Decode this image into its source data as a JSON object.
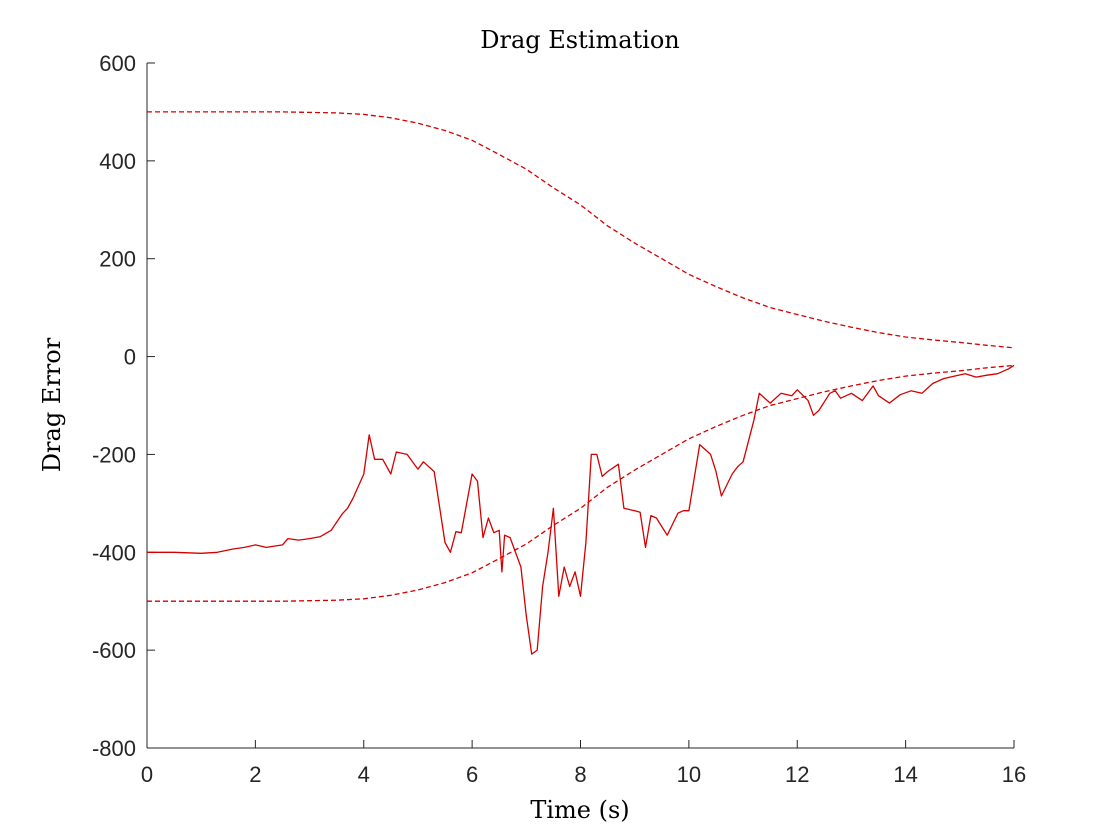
{
  "chart_data": {
    "type": "line",
    "title": "Drag Estimation",
    "xlabel": "Time (s)",
    "ylabel": "Drag Error",
    "xlim": [
      0,
      16
    ],
    "ylim": [
      -800,
      600
    ],
    "xticks": [
      0,
      2,
      4,
      6,
      8,
      10,
      12,
      14,
      16
    ],
    "yticks": [
      -800,
      -600,
      -400,
      -200,
      0,
      200,
      400,
      600
    ],
    "grid": false,
    "legend": "none",
    "series": [
      {
        "color": "#d40000",
        "style": "solid",
        "x": [
          0,
          0.5,
          1.0,
          1.3,
          1.6,
          1.8,
          2.0,
          2.2,
          2.5,
          2.6,
          2.8,
          3.0,
          3.2,
          3.4,
          3.6,
          3.7,
          3.8,
          4.0,
          4.1,
          4.2,
          4.35,
          4.5,
          4.6,
          4.8,
          5.0,
          5.1,
          5.3,
          5.5,
          5.6,
          5.7,
          5.8,
          5.9,
          6.0,
          6.1,
          6.2,
          6.3,
          6.4,
          6.5,
          6.55,
          6.6,
          6.7,
          6.9,
          7.0,
          7.1,
          7.2,
          7.3,
          7.4,
          7.5,
          7.6,
          7.7,
          7.8,
          7.9,
          8.0,
          8.1,
          8.2,
          8.3,
          8.4,
          8.5,
          8.7,
          8.8,
          9.0,
          9.1,
          9.2,
          9.3,
          9.4,
          9.6,
          9.8,
          9.9,
          10.0,
          10.2,
          10.4,
          10.5,
          10.6,
          10.8,
          10.9,
          11.0,
          11.2,
          11.3,
          11.5,
          11.7,
          11.9,
          12.0,
          12.2,
          12.3,
          12.4,
          12.6,
          12.7,
          12.8,
          13.0,
          13.2,
          13.4,
          13.5,
          13.7,
          13.9,
          14.1,
          14.3,
          14.5,
          14.7,
          14.9,
          15.1,
          15.3,
          15.5,
          15.7,
          15.9,
          16.0
        ],
        "y": [
          -400,
          -400,
          -402,
          -400,
          -393,
          -390,
          -385,
          -390,
          -385,
          -372,
          -375,
          -372,
          -368,
          -355,
          -322,
          -310,
          -290,
          -240,
          -160,
          -210,
          -210,
          -240,
          -195,
          -200,
          -230,
          -215,
          -235,
          -380,
          -400,
          -358,
          -360,
          -300,
          -240,
          -255,
          -370,
          -330,
          -360,
          -355,
          -440,
          -365,
          -370,
          -430,
          -530,
          -608,
          -600,
          -470,
          -400,
          -310,
          -490,
          -430,
          -470,
          -440,
          -490,
          -380,
          -200,
          -200,
          -245,
          -235,
          -220,
          -310,
          -315,
          -318,
          -390,
          -325,
          -330,
          -365,
          -320,
          -315,
          -315,
          -180,
          -200,
          -235,
          -285,
          -240,
          -225,
          -215,
          -130,
          -75,
          -95,
          -75,
          -80,
          -68,
          -90,
          -120,
          -110,
          -75,
          -70,
          -85,
          -75,
          -90,
          -60,
          -80,
          -95,
          -78,
          -70,
          -75,
          -55,
          -45,
          -40,
          -35,
          -42,
          -38,
          -35,
          -25,
          -18
        ]
      },
      {
        "color": "#d40000",
        "style": "dashed",
        "x": [
          0,
          1,
          2,
          2.5,
          3.0,
          3.5,
          4.0,
          4.5,
          5.0,
          5.5,
          6.0,
          6.5,
          7.0,
          7.5,
          8.0,
          8.5,
          9.0,
          9.5,
          10.0,
          10.5,
          11.0,
          11.5,
          12.0,
          12.5,
          13.0,
          13.5,
          14.0,
          14.5,
          15.0,
          15.5,
          16.0
        ],
        "y": [
          500,
          500,
          500,
          500,
          499,
          498,
          495,
          488,
          477,
          462,
          442,
          413,
          383,
          345,
          310,
          267,
          232,
          200,
          168,
          143,
          120,
          100,
          86,
          72,
          60,
          49,
          40,
          34,
          29,
          23,
          18
        ]
      },
      {
        "color": "#d40000",
        "style": "dashed",
        "x": [
          0,
          1,
          2,
          2.5,
          3.0,
          3.5,
          4.0,
          4.5,
          5.0,
          5.5,
          6.0,
          6.5,
          7.0,
          7.5,
          8.0,
          8.5,
          9.0,
          9.5,
          10.0,
          10.5,
          11.0,
          11.5,
          12.0,
          12.5,
          13.0,
          13.5,
          14.0,
          14.5,
          15.0,
          15.5,
          16.0
        ],
        "y": [
          -500,
          -500,
          -500,
          -500,
          -499,
          -498,
          -495,
          -488,
          -477,
          -462,
          -442,
          -413,
          -383,
          -345,
          -310,
          -267,
          -232,
          -200,
          -168,
          -143,
          -120,
          -100,
          -86,
          -72,
          -60,
          -49,
          -40,
          -34,
          -29,
          -23,
          -18
        ]
      }
    ]
  }
}
